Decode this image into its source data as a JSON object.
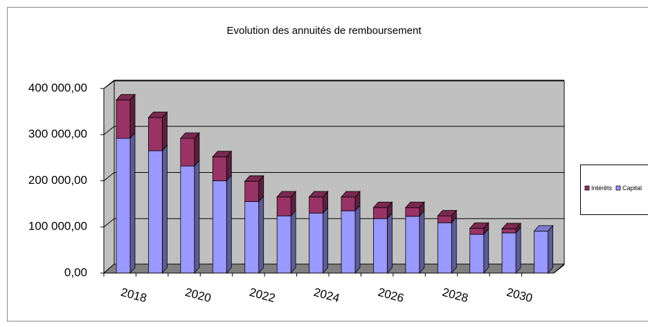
{
  "chart_data": {
    "type": "bar",
    "stacked": true,
    "title": "Evolution des annuités de remboursement",
    "categories": [
      "2018",
      null,
      "2020",
      null,
      "2022",
      null,
      "2024",
      null,
      "2026",
      null,
      "2028",
      null,
      "2030",
      null
    ],
    "series": [
      {
        "name": "Intérêts",
        "color": "#993366",
        "values": [
          83000,
          72000,
          60000,
          52000,
          44000,
          41000,
          35000,
          30000,
          24000,
          19000,
          15000,
          13000,
          9000,
          0
        ]
      },
      {
        "name": "Capital",
        "color": "#9999ff",
        "values": [
          292000,
          265000,
          232000,
          200000,
          155000,
          124000,
          130000,
          135000,
          118000,
          123000,
          109000,
          84000,
          87000,
          91000
        ]
      }
    ],
    "ylim": [
      0,
      400000
    ],
    "yticks": [
      {
        "value": 0,
        "label": "0,00"
      },
      {
        "value": 100000,
        "label": "100 000,00"
      },
      {
        "value": 200000,
        "label": "200 000,00"
      },
      {
        "value": 300000,
        "label": "300 000,00"
      },
      {
        "value": 400000,
        "label": "400 000,00"
      }
    ],
    "grid": true,
    "legend": "right"
  }
}
